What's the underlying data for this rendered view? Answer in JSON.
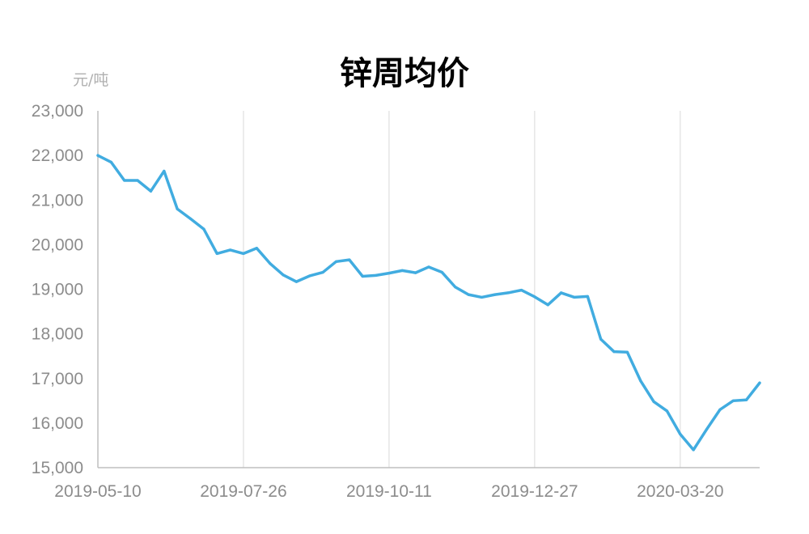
{
  "chart_data": {
    "type": "line",
    "title": "锌周均价",
    "ylabel": "元/吨",
    "xlabel": "",
    "ylim": [
      15000,
      23000
    ],
    "y_ticks": [
      "15,000",
      "16,000",
      "17,000",
      "18,000",
      "19,000",
      "20,000",
      "21,000",
      "22,000",
      "23,000"
    ],
    "y_tick_values": [
      15000,
      16000,
      17000,
      18000,
      19000,
      20000,
      21000,
      22000,
      23000
    ],
    "x_ticks": [
      "2019-05-10",
      "2019-07-26",
      "2019-10-11",
      "2019-12-27",
      "2020-03-20"
    ],
    "x_tick_index": [
      0,
      11,
      22,
      33,
      44
    ],
    "grid": "vertical",
    "line_color": "#41ACE0",
    "series": [
      {
        "values": [
          22000,
          21850,
          21440,
          21440,
          21200,
          21650,
          20800,
          20580,
          20350,
          19800,
          19880,
          19800,
          19920,
          19580,
          19320,
          19170,
          19300,
          19380,
          19620,
          19660,
          19290,
          19310,
          19360,
          19420,
          19370,
          19500,
          19380,
          19050,
          18880,
          18820,
          18880,
          18920,
          18980,
          18830,
          18650,
          18920,
          18820,
          18840,
          17880,
          17600,
          17590,
          16950,
          16480,
          16270,
          15750,
          15400,
          15860,
          16300,
          16500,
          16520,
          16900
        ]
      }
    ]
  }
}
